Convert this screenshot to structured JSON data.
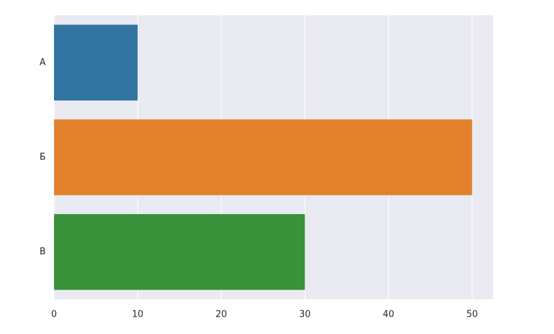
{
  "chart_data": {
    "type": "bar",
    "orientation": "horizontal",
    "categories": [
      "А",
      "Б",
      "В"
    ],
    "values": [
      10,
      50,
      30
    ],
    "colors": [
      "#3274a1",
      "#e1812c",
      "#3a923a"
    ],
    "xlim": [
      0,
      52.5
    ],
    "xticks": [
      0,
      10,
      20,
      30,
      40,
      50
    ],
    "grid": true
  }
}
